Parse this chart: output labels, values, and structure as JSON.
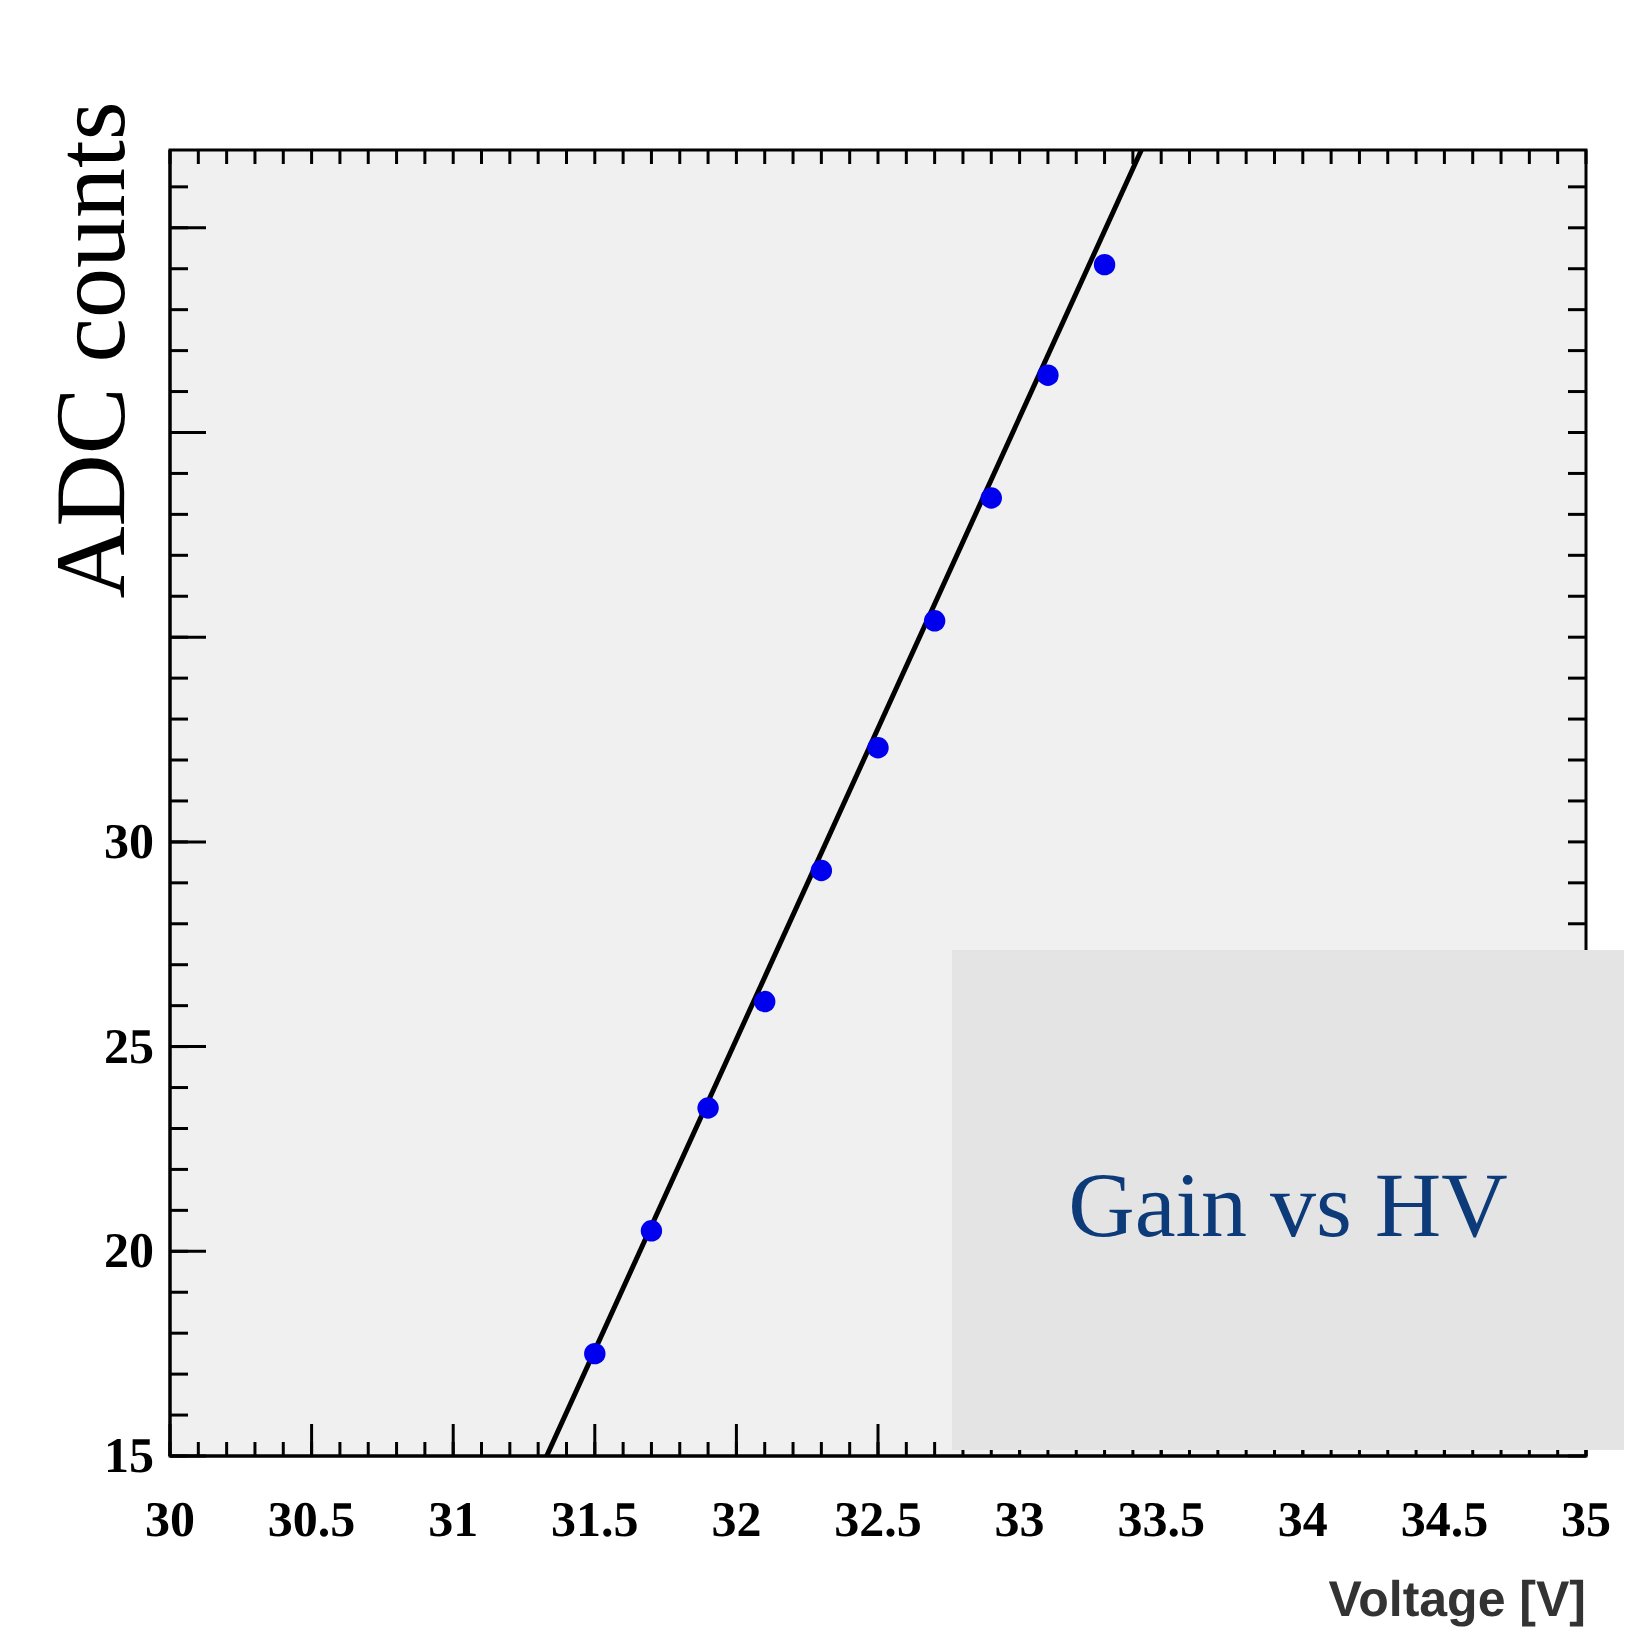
{
  "chart_data": {
    "type": "scatter",
    "xlabel": "Voltage [V]",
    "ylabel": "ADC counts",
    "xlim": [
      30,
      35
    ],
    "xticks": [
      30,
      30.5,
      31,
      31.5,
      32,
      32.5,
      33,
      33.5,
      34,
      34.5,
      35
    ],
    "ylim": [
      15,
      46.9
    ],
    "yticks": [
      15,
      20,
      25,
      30,
      {
        "value": 35,
        "label": null
      },
      {
        "value": 40,
        "label": null
      },
      {
        "value": 45,
        "label": null
      }
    ],
    "series": [
      {
        "marker": "circle",
        "color": "#0000ee",
        "x": [
          31.5,
          31.7,
          31.9,
          32.1,
          32.3,
          32.5,
          32.7,
          32.9,
          33.1,
          33.3
        ],
        "values": [
          17.5,
          20.5,
          23.5,
          26.1,
          29.3,
          32.3,
          35.4,
          38.4,
          41.4,
          44.1
        ]
      },
      {
        "type": "line",
        "color": "#000000",
        "x": [
          31.33,
          33.43
        ],
        "values": [
          15,
          46.9
        ]
      }
    ],
    "annotations": [
      "Gain vs HV"
    ]
  }
}
